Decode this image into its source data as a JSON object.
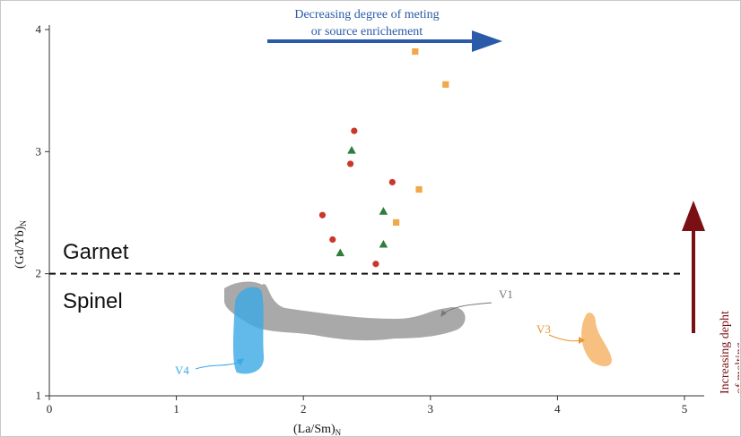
{
  "chart_data": {
    "type": "scatter",
    "xlabel": "(La/Sm)",
    "xlabel_sub": "N",
    "ylabel": "(Gd/Yb)",
    "ylabel_sub": "N",
    "xlim": [
      0,
      5
    ],
    "ylim": [
      1,
      4
    ],
    "x_ticks": [
      "0",
      "1",
      "2",
      "3",
      "4",
      "5"
    ],
    "y_ticks": [
      "1",
      "2",
      "3",
      "4"
    ],
    "grid": false,
    "divider_y": 2.0,
    "zones": {
      "upper": "Garnet",
      "lower": "Spinel"
    },
    "series": [
      {
        "marker": "circle",
        "color": "#c9382b",
        "points": [
          [
            2.4,
            3.17
          ],
          [
            2.37,
            2.9
          ],
          [
            2.7,
            2.75
          ],
          [
            2.15,
            2.48
          ],
          [
            2.23,
            2.28
          ],
          [
            2.57,
            2.08
          ]
        ]
      },
      {
        "marker": "triangle",
        "color": "#2e7d3a",
        "points": [
          [
            2.38,
            3.01
          ],
          [
            2.63,
            2.51
          ],
          [
            2.63,
            2.24
          ],
          [
            2.29,
            2.17
          ]
        ]
      },
      {
        "marker": "square",
        "color": "#f2a74a",
        "points": [
          [
            2.88,
            3.82
          ],
          [
            3.12,
            3.55
          ],
          [
            2.91,
            2.69
          ],
          [
            2.73,
            2.42
          ]
        ]
      }
    ],
    "fields": [
      {
        "label": "V1",
        "color": "#9a9a9a"
      },
      {
        "label": "V3",
        "color": "#f7bf80"
      },
      {
        "label": "V4",
        "color": "#3aa9e4"
      }
    ],
    "annotations": {
      "top_arrow_line1": "Decreasing degree of meting",
      "top_arrow_line2": "or source enrichement",
      "right_arrow_line1": "Increasing depht",
      "right_arrow_line2": "of melting"
    },
    "colors": {
      "top_arrow": "#2a5aa8",
      "right_arrow": "#7a0f14"
    }
  }
}
